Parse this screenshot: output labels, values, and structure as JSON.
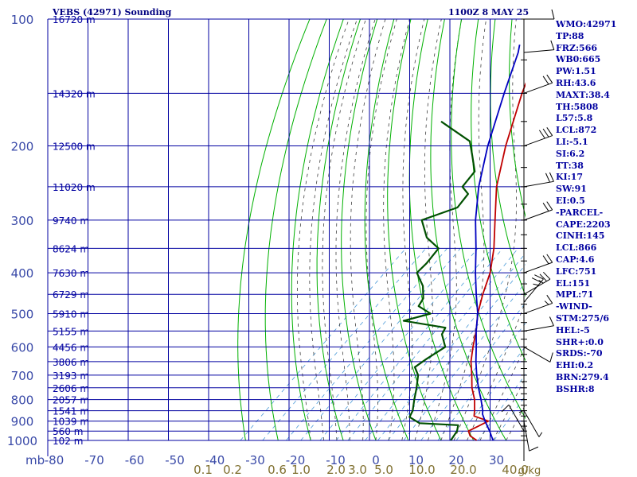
{
  "header": {
    "station": "VEBS (42971) Sounding",
    "time": "1100Z  8 MAY 25"
  },
  "indices": [
    "WMO:42971",
    "TP:88",
    "FRZ:566",
    "WB0:665",
    "PW:1.51",
    "RH:43.6",
    "MAXT:38.4",
    "TH:5808",
    "L57:5.8",
    "LCL:872",
    "LI:-5.1",
    "SI:6.2",
    "TT:38",
    "KI:17",
    "SW:91",
    "EI:0.5",
    "-PARCEL-",
    "CAPE:2203",
    "CINH:145",
    "LCL:866",
    "CAP:4.6",
    "LFC:751",
    "EL:151",
    "MPL:71",
    "-WIND-",
    "STM:275/6",
    "HEL:-5",
    "SHR+:0.0",
    "SRDS:-70",
    "EHI:0.2",
    "BRN:279.4",
    "BSHR:8"
  ],
  "colors": {
    "frame": "#0000a0",
    "dry_adiabat": "#00b000",
    "temperature": "#c00000",
    "dewpoint": "#005000",
    "parcel": "#0000c0",
    "mixing_ratio": "#4a9ad8",
    "moist_adiabat": "#404040",
    "tick_text": "#3a4aa8",
    "mixing_label": "#807030"
  },
  "chart_data": {
    "type": "line",
    "title": "VEBS (42971) Sounding",
    "xlim": [
      -80,
      35
    ],
    "ylim": [
      1000,
      100
    ],
    "y_scale": "log",
    "pressure_unit_label": "mb",
    "grid": true,
    "x_ticks": [
      "-80",
      "-70",
      "-60",
      "-50",
      "-40",
      "-30",
      "-20",
      "-10",
      "0",
      "10",
      "20",
      "30"
    ],
    "y_ticks": [
      "100",
      "200",
      "300",
      "400",
      "500",
      "600",
      "700",
      "800",
      "900",
      "1000"
    ],
    "height_labels": [
      {
        "p": 100,
        "label": "16720 m"
      },
      {
        "p": 150,
        "label": "14320 m"
      },
      {
        "p": 200,
        "label": "12500 m"
      },
      {
        "p": 250,
        "label": "11020 m"
      },
      {
        "p": 300,
        "label": "9740 m"
      },
      {
        "p": 350,
        "label": "8624 m"
      },
      {
        "p": 400,
        "label": "7630 m"
      },
      {
        "p": 450,
        "label": "6729 m"
      },
      {
        "p": 500,
        "label": "5910 m"
      },
      {
        "p": 550,
        "label": "5155 m"
      },
      {
        "p": 600,
        "label": "4456 m"
      },
      {
        "p": 650,
        "label": "3806 m"
      },
      {
        "p": 700,
        "label": "3193 m"
      },
      {
        "p": 750,
        "label": "2606 m"
      },
      {
        "p": 800,
        "label": "2057 m"
      },
      {
        "p": 850,
        "label": "1541 m"
      },
      {
        "p": 900,
        "label": "1039 m"
      },
      {
        "p": 950,
        "label": "560 m"
      },
      {
        "p": 1000,
        "label": "102 m"
      }
    ],
    "mixing_ratio_labels": [
      "0.1",
      "0.2",
      "0.6",
      "1.0",
      "2.0",
      "3.0",
      "5.0",
      "10.0",
      "20.0",
      "40.0"
    ],
    "mixing_ratio_unit": "g/kg",
    "series": [
      {
        "key": "temperature",
        "points": [
          {
            "p": 1000,
            "t": 31
          },
          {
            "p": 975,
            "t": 27.5
          },
          {
            "p": 950,
            "t": 25.5
          },
          {
            "p": 925,
            "t": 27
          },
          {
            "p": 900,
            "t": 28.5
          },
          {
            "p": 875,
            "t": 22.5
          },
          {
            "p": 850,
            "t": 21
          },
          {
            "p": 800,
            "t": 17.5
          },
          {
            "p": 750,
            "t": 13
          },
          {
            "p": 700,
            "t": 9
          },
          {
            "p": 650,
            "t": 4.5
          },
          {
            "p": 600,
            "t": 0.5
          },
          {
            "p": 550,
            "t": -3.5
          },
          {
            "p": 500,
            "t": -8.5
          },
          {
            "p": 450,
            "t": -13
          },
          {
            "p": 400,
            "t": -17.5
          },
          {
            "p": 350,
            "t": -24
          },
          {
            "p": 300,
            "t": -32.5
          },
          {
            "p": 250,
            "t": -42.5
          },
          {
            "p": 200,
            "t": -52.5
          },
          {
            "p": 150,
            "t": -64
          },
          {
            "p": 120,
            "t": -72
          },
          {
            "p": 100,
            "t": -78
          }
        ]
      },
      {
        "key": "dewpoint",
        "points": [
          {
            "p": 1000,
            "t": 23
          },
          {
            "p": 950,
            "t": 22
          },
          {
            "p": 920,
            "t": 20.5
          },
          {
            "p": 910,
            "t": 8
          },
          {
            "p": 880,
            "t": 3
          },
          {
            "p": 850,
            "t": 2
          },
          {
            "p": 800,
            "t": -1
          },
          {
            "p": 750,
            "t": -4
          },
          {
            "p": 700,
            "t": -7.5
          },
          {
            "p": 670,
            "t": -11
          },
          {
            "p": 640,
            "t": -10
          },
          {
            "p": 600,
            "t": -8
          },
          {
            "p": 560,
            "t": -13
          },
          {
            "p": 540,
            "t": -14
          },
          {
            "p": 520,
            "t": -29
          },
          {
            "p": 500,
            "t": -23
          },
          {
            "p": 480,
            "t": -29
          },
          {
            "p": 460,
            "t": -30
          },
          {
            "p": 430,
            "t": -34
          },
          {
            "p": 400,
            "t": -40
          },
          {
            "p": 380,
            "t": -40
          },
          {
            "p": 350,
            "t": -41
          },
          {
            "p": 330,
            "t": -48
          },
          {
            "p": 300,
            "t": -55
          },
          {
            "p": 280,
            "t": -48
          },
          {
            "p": 260,
            "t": -49
          },
          {
            "p": 250,
            "t": -53
          },
          {
            "p": 230,
            "t": -54
          },
          {
            "p": 210,
            "t": -60
          },
          {
            "p": 195,
            "t": -65
          },
          {
            "p": 175,
            "t": -80
          }
        ]
      },
      {
        "key": "parcel",
        "points": [
          {
            "p": 1000,
            "t": 36
          },
          {
            "p": 950,
            "t": 32
          },
          {
            "p": 900,
            "t": 27.5
          },
          {
            "p": 866,
            "t": 24.5
          },
          {
            "p": 850,
            "t": 23.5
          },
          {
            "p": 800,
            "t": 19.5
          },
          {
            "p": 750,
            "t": 15
          },
          {
            "p": 700,
            "t": 10.5
          },
          {
            "p": 650,
            "t": 6
          },
          {
            "p": 600,
            "t": 1.5
          },
          {
            "p": 550,
            "t": -3.5
          },
          {
            "p": 500,
            "t": -8.5
          },
          {
            "p": 450,
            "t": -15
          },
          {
            "p": 400,
            "t": -22
          },
          {
            "p": 350,
            "t": -29.5
          },
          {
            "p": 300,
            "t": -38.5
          },
          {
            "p": 250,
            "t": -48
          },
          {
            "p": 200,
            "t": -58
          },
          {
            "p": 150,
            "t": -69.5
          },
          {
            "p": 120,
            "t": -78
          },
          {
            "p": 115,
            "t": -80
          }
        ]
      }
    ],
    "winds": [
      {
        "p": 100,
        "dir": 270,
        "spd": 10
      },
      {
        "p": 120,
        "dir": 265,
        "spd": 10
      },
      {
        "p": 150,
        "dir": 250,
        "spd": 20
      },
      {
        "p": 200,
        "dir": 250,
        "spd": 30
      },
      {
        "p": 250,
        "dir": 260,
        "spd": 20
      },
      {
        "p": 300,
        "dir": 250,
        "spd": 20
      },
      {
        "p": 400,
        "dir": 250,
        "spd": 20
      },
      {
        "p": 450,
        "dir": 240,
        "spd": 25
      },
      {
        "p": 470,
        "dir": 220,
        "spd": 25
      },
      {
        "p": 500,
        "dir": 250,
        "spd": 15
      },
      {
        "p": 550,
        "dir": 260,
        "spd": 10
      },
      {
        "p": 600,
        "dir": 300,
        "spd": 10
      },
      {
        "p": 850,
        "dir": 330,
        "spd": 5
      },
      {
        "p": 900,
        "dir": 350,
        "spd": 10
      },
      {
        "p": 950,
        "dir": 150,
        "spd": 10
      },
      {
        "p": 1000,
        "dir": 180,
        "spd": 5
      }
    ]
  }
}
